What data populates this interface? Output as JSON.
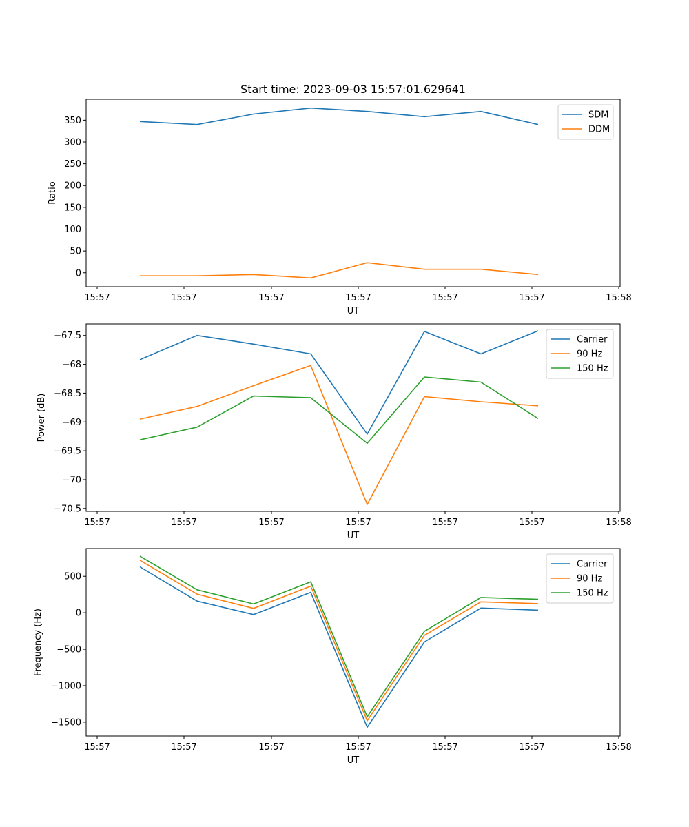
{
  "chart_data": [
    {
      "type": "line",
      "title": "Start time: 2023-09-03 15:57:01.629641",
      "xlabel": "UT",
      "ylabel": "Ratio",
      "x_tick_labels": [
        "15:57",
        "15:57",
        "15:57",
        "15:57",
        "15:57",
        "15:57",
        "15:58"
      ],
      "ylim": [
        -32,
        398
      ],
      "y_ticks": [
        0,
        50,
        100,
        150,
        200,
        250,
        300,
        350
      ],
      "legend_position": "upper-right",
      "series": [
        {
          "name": "SDM",
          "color": "#1f77b4",
          "values": [
            347,
            340,
            364,
            378,
            370,
            358,
            370,
            340
          ]
        },
        {
          "name": "DDM",
          "color": "#ff7f0e",
          "values": [
            -7,
            -7,
            -4,
            -12,
            23,
            8,
            8,
            -4
          ]
        }
      ]
    },
    {
      "type": "line",
      "title": "",
      "xlabel": "UT",
      "ylabel": "Power (dB)",
      "x_tick_labels": [
        "15:57",
        "15:57",
        "15:57",
        "15:57",
        "15:57",
        "15:57",
        "15:58"
      ],
      "ylim": [
        -70.55,
        -67.3
      ],
      "y_ticks": [
        -70.5,
        -70.0,
        -69.5,
        -69.0,
        -68.5,
        -68.0,
        -67.5
      ],
      "legend_position": "upper-right",
      "series": [
        {
          "name": "Carrier",
          "color": "#1f77b4",
          "values": [
            -67.92,
            -67.5,
            -67.65,
            -67.82,
            -69.21,
            -67.43,
            -67.82,
            -67.42
          ]
        },
        {
          "name": "90 Hz",
          "color": "#ff7f0e",
          "values": [
            -68.95,
            -68.73,
            -68.37,
            -68.02,
            -70.43,
            -68.56,
            -68.65,
            -68.72
          ]
        },
        {
          "name": "150 Hz",
          "color": "#2ca02c",
          "values": [
            -69.31,
            -69.09,
            -68.55,
            -68.58,
            -69.37,
            -68.22,
            -68.31,
            -68.94
          ]
        }
      ]
    },
    {
      "type": "line",
      "title": "",
      "xlabel": "UT",
      "ylabel": "Frequency (Hz)",
      "x_tick_labels": [
        "15:57",
        "15:57",
        "15:57",
        "15:57",
        "15:57",
        "15:57",
        "15:58"
      ],
      "ylim": [
        -1690,
        880
      ],
      "y_ticks": [
        -1500,
        -1000,
        -500,
        0,
        500
      ],
      "legend_position": "upper-right",
      "series": [
        {
          "name": "Carrier",
          "color": "#1f77b4",
          "values": [
            630,
            160,
            -25,
            280,
            -1570,
            -400,
            65,
            35
          ]
        },
        {
          "name": "90 Hz",
          "color": "#ff7f0e",
          "values": [
            720,
            255,
            60,
            365,
            -1480,
            -310,
            150,
            125
          ]
        },
        {
          "name": "150 Hz",
          "color": "#2ca02c",
          "values": [
            775,
            315,
            120,
            425,
            -1425,
            -255,
            210,
            185
          ]
        }
      ]
    }
  ]
}
